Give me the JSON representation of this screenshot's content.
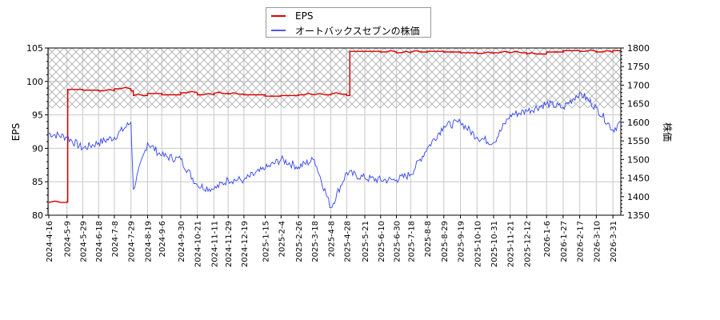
{
  "chart_data": {
    "type": "line",
    "title": "",
    "xlabel": "",
    "ylabel_left": "EPS",
    "ylabel_right": "株価",
    "ylim_left": [
      80,
      105
    ],
    "ylim_right": [
      1350,
      1800
    ],
    "yticks_left": [
      80,
      85,
      90,
      95,
      100,
      105
    ],
    "yticks_right": [
      1350,
      1400,
      1450,
      1500,
      1550,
      1600,
      1650,
      1700,
      1750,
      1800
    ],
    "grid": true,
    "legend_position": "top-center",
    "hatched_band_eps": [
      96.0,
      105
    ],
    "x_tick_labels": [
      "2024-4-16",
      "2024-5-9",
      "2024-5-29",
      "2024-6-18",
      "2024-7-8",
      "2024-7-29",
      "2024-8-19",
      "2024-9-6",
      "2024-9-30",
      "2024-10-21",
      "2024-11-11",
      "2024-11-29",
      "2024-12-19",
      "2025-1-15",
      "2025-2-4",
      "2025-2-26",
      "2025-3-18",
      "2025-4-8",
      "2025-4-28",
      "2025-5-21",
      "2025-6-10",
      "2025-6-30",
      "2025-7-18",
      "2025-8-8",
      "2025-8-29",
      "2025-9-19",
      "2025-10-10",
      "2025-10-31",
      "2025-11-21",
      "2025-12-12",
      "2026-1-6",
      "2026-1-27",
      "2026-2-17",
      "2026-3-10",
      "2026-3-31"
    ],
    "series": [
      {
        "name": "EPS",
        "color": "#dd0000",
        "axis": "left",
        "x": [
          "2024-4-16",
          "2024-5-9",
          "2024-5-10",
          "2024-5-29",
          "2024-6-18",
          "2024-7-8",
          "2024-7-29",
          "2024-8-1",
          "2024-8-19",
          "2024-9-6",
          "2024-9-30",
          "2024-10-21",
          "2024-11-11",
          "2024-11-29",
          "2024-12-19",
          "2025-1-15",
          "2025-2-4",
          "2025-2-26",
          "2025-3-18",
          "2025-4-8",
          "2025-4-28",
          "2025-5-2",
          "2025-5-21",
          "2025-6-10",
          "2025-6-30",
          "2025-7-18",
          "2025-8-8",
          "2025-8-29",
          "2025-9-19",
          "2025-10-10",
          "2025-10-31",
          "2025-11-21",
          "2025-12-12",
          "2026-1-6",
          "2026-1-27",
          "2026-2-17",
          "2026-3-10",
          "2026-3-31",
          "2026-4-10"
        ],
        "values": [
          81.9,
          82.0,
          98.8,
          98.7,
          98.6,
          98.9,
          98.6,
          97.9,
          98.2,
          98.0,
          98.3,
          98.0,
          98.2,
          98.1,
          98.0,
          97.8,
          97.9,
          98.0,
          98.0,
          98.1,
          97.9,
          104.5,
          104.5,
          104.4,
          104.3,
          104.4,
          104.5,
          104.4,
          104.3,
          104.2,
          104.3,
          104.3,
          104.1,
          104.4,
          104.6,
          104.5,
          104.4,
          104.6,
          104.7
        ]
      },
      {
        "name": "オートバックスセブンの株価",
        "color": "#3333dd",
        "axis": "right",
        "x": [
          "2024-4-16",
          "2024-5-9",
          "2024-5-29",
          "2024-6-18",
          "2024-7-8",
          "2024-7-29",
          "2024-8-1",
          "2024-8-19",
          "2024-9-6",
          "2024-9-30",
          "2024-10-21",
          "2024-11-11",
          "2024-11-29",
          "2024-12-19",
          "2025-1-15",
          "2025-2-4",
          "2025-2-26",
          "2025-3-18",
          "2025-4-8",
          "2025-4-28",
          "2025-5-21",
          "2025-6-10",
          "2025-6-30",
          "2025-7-18",
          "2025-8-8",
          "2025-8-29",
          "2025-9-19",
          "2025-10-10",
          "2025-10-31",
          "2025-11-21",
          "2025-12-12",
          "2026-1-6",
          "2026-1-27",
          "2026-2-17",
          "2026-3-10",
          "2026-3-31",
          "2026-4-10"
        ],
        "values": [
          1570,
          1560,
          1530,
          1545,
          1560,
          1600,
          1420,
          1545,
          1510,
          1500,
          1430,
          1420,
          1445,
          1445,
          1475,
          1500,
          1480,
          1500,
          1370,
          1465,
          1450,
          1445,
          1445,
          1460,
          1530,
          1590,
          1600,
          1560,
          1545,
          1620,
          1630,
          1650,
          1640,
          1680,
          1640,
          1580,
          1600
        ]
      }
    ]
  },
  "legend": {
    "items": [
      {
        "label": "EPS",
        "color": "#dd0000"
      },
      {
        "label": "オートバックスセブンの株価",
        "color": "#5555ee"
      }
    ]
  }
}
